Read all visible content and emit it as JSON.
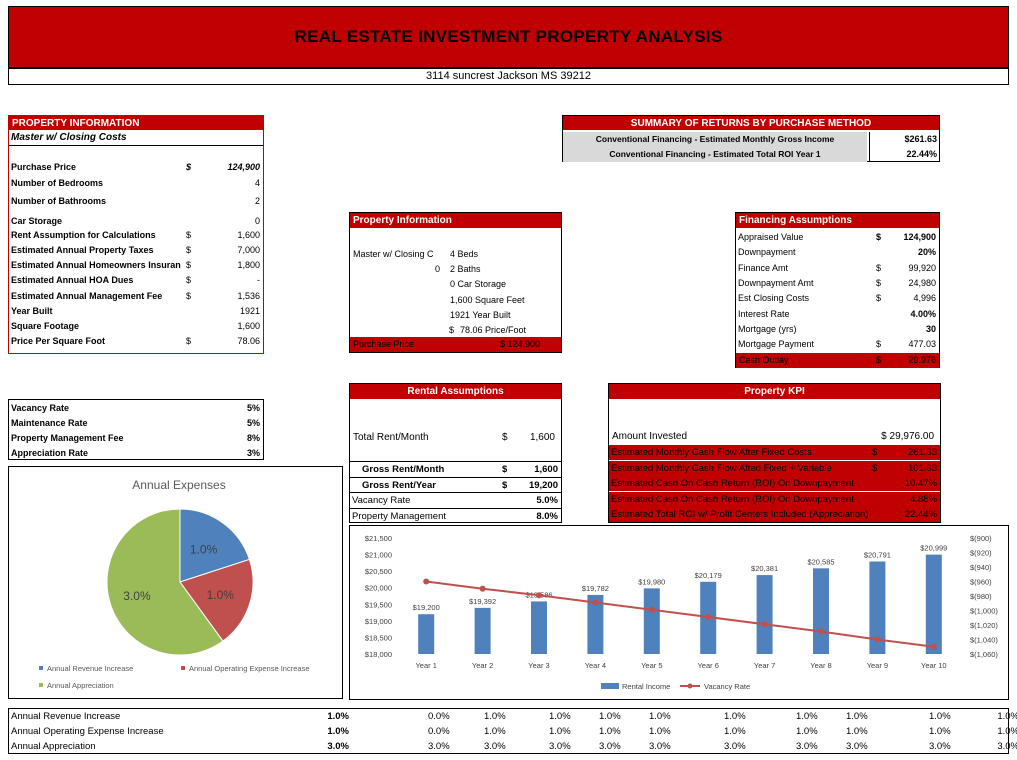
{
  "title": "REAL ESTATE INVESTMENT PROPERTY ANALYSIS",
  "address": "3114 suncrest Jackson MS 39212",
  "property_info": {
    "header": "PROPERTY INFORMATION",
    "subtitle": "Master w/ Closing Costs",
    "rows": [
      {
        "label": "Purchase Price",
        "cur": "$",
        "value": "124,900"
      },
      {
        "label": "Number of Bedrooms",
        "cur": "",
        "value": "4"
      },
      {
        "label": "Number of Bathrooms",
        "cur": "",
        "value": "2"
      },
      {
        "label": "Car Storage",
        "cur": "",
        "value": "0"
      },
      {
        "label": "Rent Assumption for Calculations",
        "cur": "$",
        "value": "1,600"
      },
      {
        "label": "Estimated Annual Property Taxes",
        "cur": "$",
        "value": "7,000"
      },
      {
        "label": "Estimated Annual Homeowners Insuranc",
        "cur": "$",
        "value": "1,800"
      },
      {
        "label": "Estimated Annual HOA Dues",
        "cur": "$",
        "value": "-"
      },
      {
        "label": "Estimated Annual Management Fee",
        "cur": "$",
        "value": "1,536"
      },
      {
        "label": "Year Built",
        "cur": "",
        "value": "1921"
      },
      {
        "label": "Square Footage",
        "cur": "",
        "value": "1,600"
      },
      {
        "label": "Price Per Square Foot",
        "cur": "$",
        "value": "78.06"
      }
    ]
  },
  "rates": [
    {
      "label": "Vacancy Rate",
      "value": "5%"
    },
    {
      "label": "Maintenance Rate",
      "value": "5%"
    },
    {
      "label": "Property Management Fee",
      "value": "8%"
    },
    {
      "label": "Appreciation Rate",
      "value": "3%"
    }
  ],
  "summary": {
    "header": "SUMMARY OF RETURNS BY PURCHASE METHOD",
    "rows": [
      {
        "label": "Conventional Financing - Estimated Monthly Gross Income",
        "value": "$261.63"
      },
      {
        "label": "Conventional Financing - Estimated Total ROI Year 1",
        "value": "22.44%"
      }
    ]
  },
  "prop_panel": {
    "header": "Property Information",
    "left1": "Master w/ Closing C",
    "left2": "0",
    "items": [
      "4 Beds",
      "2 Baths",
      "0 Car Storage",
      "1,600 Square Feet",
      "1921 Year Built"
    ],
    "ppsf_cur": "$",
    "ppsf": "78.06 Price/Foot",
    "footer_label": "Purchase Price",
    "footer_value": "$ 124,900"
  },
  "financing": {
    "header": "Financing Assumptions",
    "rows": [
      {
        "label": "Appraised Value",
        "cur": "$",
        "value": "124,900",
        "bold": true
      },
      {
        "label": "Downpayment",
        "cur": "",
        "value": "20%",
        "bold": true
      },
      {
        "label": "Finance Amt",
        "cur": "$",
        "value": "99,920",
        "bold": false
      },
      {
        "label": "Downpayment Amt",
        "cur": "$",
        "value": "24,980",
        "bold": false
      },
      {
        "label": "Est Closing Costs",
        "cur": "$",
        "value": "4,996",
        "bold": false
      },
      {
        "label": "Interest Rate",
        "cur": "",
        "value": "4.00%",
        "bold": true
      },
      {
        "label": "Mortgage (yrs)",
        "cur": "",
        "value": "30",
        "bold": true
      },
      {
        "label": "Mortgage Payment",
        "cur": "$",
        "value": "477.03",
        "bold": false
      }
    ],
    "footer_label": "Cash Outlay",
    "footer_cur": "$",
    "footer_value": "29,976"
  },
  "rental": {
    "header": "Rental Assumptions",
    "total_label": "Total Rent/Month",
    "total_cur": "$",
    "total_value": "1,600",
    "rows": [
      {
        "label": "Gross Rent/Month",
        "cur": "$",
        "value": "1,600"
      },
      {
        "label": "Gross Rent/Year",
        "cur": "$",
        "value": "19,200"
      },
      {
        "label": "Vacancy Rate",
        "cur": "",
        "value": "5.0%"
      },
      {
        "label": "Property Management",
        "cur": "",
        "value": "8.0%"
      }
    ]
  },
  "kpi": {
    "header": "Property KPI",
    "invested_label": "Amount Invested",
    "invested_value": "$ 29,976.00",
    "rows": [
      {
        "label": "Estimated Monthly Cash Flow After Fixed Costs",
        "cur": "$",
        "value": "261.63"
      },
      {
        "label": "Estimated Monthly  Cash Flow Afted Fixed + Variable",
        "cur": "$",
        "value": "101.63"
      },
      {
        "label": "Estimated Cash On Cash Return (ROI) On Downpayment",
        "cur": "",
        "value": "10.47%"
      },
      {
        "label": "Estimated Cash On Cash Return (ROI) On Downpayment",
        "cur": "",
        "value": "4.88%"
      },
      {
        "label": "Estimated Total ROI w/ Profit Centers Included (Appreciation)",
        "cur": "",
        "value": "22.44%"
      }
    ]
  },
  "pie": {
    "title": "Annual Expenses",
    "legend": [
      "Annual Revenue Increase",
      "Annual Operating Expense Increase",
      "Annual Appreciation"
    ],
    "colors": [
      "#4f81bd",
      "#c0504d",
      "#9bbb59"
    ]
  },
  "bottom_table": {
    "rows": [
      {
        "label": "Annual Revenue Increase",
        "base": "1.0%",
        "values": [
          "0.0%",
          "1.0%",
          "1.0%",
          "1.0%",
          "1.0%",
          "1.0%",
          "1.0%",
          "1.0%",
          "1.0%",
          "1.0%"
        ]
      },
      {
        "label": "Annual Operating Expense Increase",
        "base": "1.0%",
        "values": [
          "0.0%",
          "1.0%",
          "1.0%",
          "1.0%",
          "1.0%",
          "1.0%",
          "1.0%",
          "1.0%",
          "1.0%",
          "1.0%"
        ]
      },
      {
        "label": "Annual Appreciation",
        "base": "3.0%",
        "values": [
          "3.0%",
          "3.0%",
          "3.0%",
          "3.0%",
          "3.0%",
          "3.0%",
          "3.0%",
          "3.0%",
          "3.0%",
          "3.0%"
        ]
      }
    ]
  },
  "chart_data": [
    {
      "type": "pie",
      "title": "Annual Expenses",
      "categories": [
        "Annual Revenue Increase",
        "Annual Operating Expense Increase",
        "Annual Appreciation"
      ],
      "values": [
        1.0,
        1.0,
        3.0
      ],
      "data_labels": [
        "1.0%",
        "1.0%",
        "3.0%"
      ],
      "colors": [
        "#4f81bd",
        "#c0504d",
        "#9bbb59"
      ],
      "legend": "bottom"
    },
    {
      "type": "bar",
      "categories": [
        "Year 1",
        "Year 2",
        "Year 3",
        "Year 4",
        "Year 5",
        "Year 6",
        "Year 7",
        "Year 8",
        "Year 9",
        "Year 10"
      ],
      "series": [
        {
          "name": "Rental Income",
          "type": "bar",
          "color": "#4f81bd",
          "axis": "left",
          "values": [
            19200,
            19392,
            19586,
            19782,
            19980,
            20179,
            20381,
            20585,
            20791,
            20999
          ],
          "labels": [
            "$19,200",
            "$19,392",
            "$19,586",
            "$19,782",
            "$19,980",
            "$20,179",
            "$20,381",
            "$20,585",
            "$20,791",
            "$20,999"
          ]
        },
        {
          "name": "Vacancy Rate",
          "type": "line",
          "color": "#c0504d",
          "axis": "right",
          "values": [
            -960,
            -970,
            -979,
            -989,
            -999,
            -1009,
            -1019,
            -1029,
            -1040,
            -1050
          ]
        }
      ],
      "ylim": [
        18000,
        21500
      ],
      "yticks": [
        "$21,500",
        "$21,000",
        "$20,500",
        "$20,000",
        "$19,500",
        "$19,000",
        "$18,500",
        "$18,000"
      ],
      "y2lim": [
        -1060,
        -900
      ],
      "y2ticks": [
        "$(900)",
        "$(920)",
        "$(940)",
        "$(960)",
        "$(980)",
        "$(1,000)",
        "$(1,020)",
        "$(1,040)",
        "$(1,060)"
      ],
      "legend": "bottom"
    }
  ]
}
